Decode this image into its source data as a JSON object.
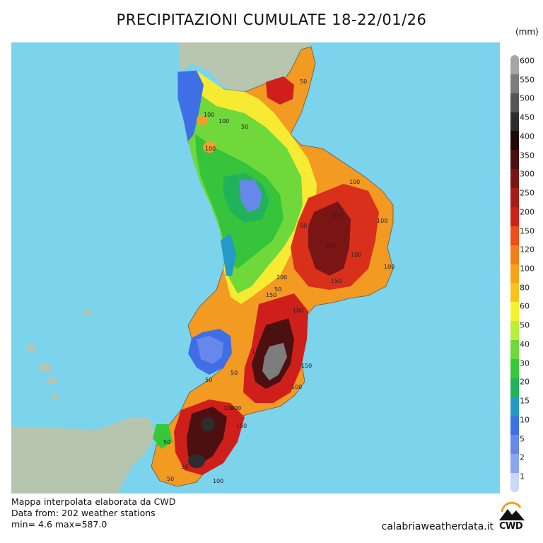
{
  "title": "PRECIPITAZIONI CUMULATE 18-22/01/26",
  "unit_label": "(mm)",
  "legend": {
    "levels": [
      "1",
      "2",
      "5",
      "10",
      "15",
      "20",
      "30",
      "40",
      "50",
      "60",
      "80",
      "100",
      "120",
      "150",
      "200",
      "250",
      "300",
      "350",
      "400",
      "450",
      "500",
      "550",
      "600"
    ],
    "colors": [
      "#c9d8f7",
      "#8aa7ee",
      "#6688ea",
      "#3f6fe6",
      "#2599c8",
      "#22b25a",
      "#35c83a",
      "#6fd83a",
      "#b9ef3a",
      "#f6f232",
      "#f8c21f",
      "#f7a31a",
      "#f27e1b",
      "#ee4e1a",
      "#cf1f1a",
      "#a81c18",
      "#7a1516",
      "#4c1011",
      "#200808",
      "#2d2d2d",
      "#555555",
      "#7d7d7d",
      "#a6a6a6"
    ]
  },
  "footer": {
    "line1": "Mappa interpolata elaborata da CWD",
    "line2": "Data from:  202 weather stations",
    "line3": "min= 4.6 max=587.0"
  },
  "site": "calabriaweatherdata.it",
  "logo_text": "CWD",
  "contour_labels": [
    "50",
    "100",
    "100",
    "100",
    "50",
    "50",
    "100",
    "200",
    "200",
    "100",
    "150",
    "100",
    "50",
    "100",
    "200",
    "150",
    "50",
    "100",
    "150",
    "100",
    "150",
    "200",
    "50",
    "50",
    "50",
    "100",
    "200",
    "150",
    "50",
    "100"
  ],
  "colors": {
    "sea": "#7cd3ec",
    "land_gray": "#b9c7b2"
  }
}
